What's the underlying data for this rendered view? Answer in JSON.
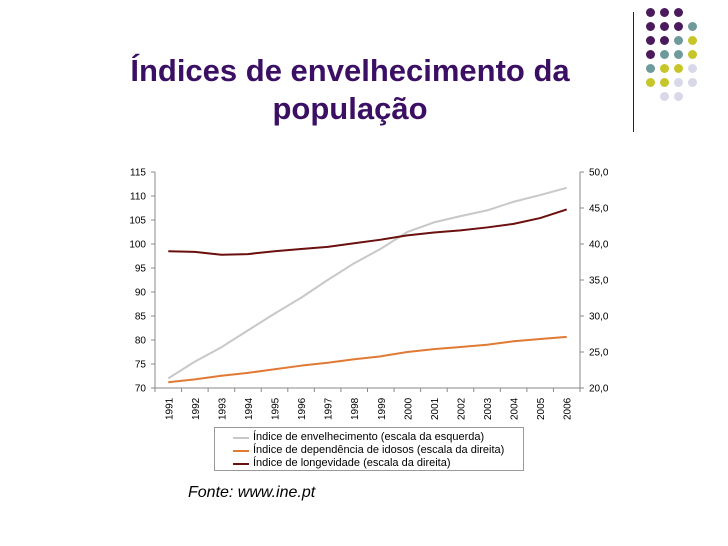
{
  "slide": {
    "title": "Índices de envelhecimento da população",
    "source": "Fonte: www.ine.pt"
  },
  "colors": {
    "title": "#3b0f63",
    "aging": "#c8c8c8",
    "dependency": "#e07a35",
    "longevity": "#6b0f0f",
    "dot_purple": "#4b1a5c",
    "dot_teal": "#6f9a9c",
    "dot_lime": "#c6c52a",
    "dot_lavender": "#d8d8e8"
  },
  "decoration": {
    "dots": [
      [
        "dot_purple",
        "dot_purple",
        "dot_purple",
        null
      ],
      [
        "dot_purple",
        "dot_purple",
        "dot_purple",
        "dot_teal"
      ],
      [
        "dot_purple",
        "dot_purple",
        "dot_teal",
        "dot_lime"
      ],
      [
        "dot_purple",
        "dot_teal",
        "dot_teal",
        "dot_lime"
      ],
      [
        "dot_teal",
        "dot_lime",
        "dot_lime",
        "dot_lavender"
      ],
      [
        "dot_lime",
        "dot_lime",
        "dot_lavender",
        "dot_lavender"
      ],
      [
        null,
        "dot_lavender",
        "dot_lavender",
        null
      ]
    ]
  },
  "chart_data": {
    "type": "line",
    "categories": [
      "1991",
      "1992",
      "1993",
      "1994",
      "1995",
      "1996",
      "1997",
      "1998",
      "1999",
      "2000",
      "2001",
      "2002",
      "2003",
      "2004",
      "2005",
      "2006"
    ],
    "y_left": {
      "range": [
        70,
        115
      ],
      "ticks": [
        "70",
        "75",
        "80",
        "85",
        "90",
        "95",
        "100",
        "105",
        "110",
        "115"
      ]
    },
    "y_right": {
      "range": [
        20,
        50
      ],
      "ticks": [
        "20,0",
        "25,0",
        "30,0",
        "35,0",
        "40,0",
        "45,0",
        "50,0"
      ]
    },
    "grid": false,
    "legend_position": "bottom",
    "series": [
      {
        "name": "Índice de envelhecimento (escala da esquerda)",
        "axis": "left",
        "color_key": "aging",
        "values": [
          72.0,
          75.5,
          78.5,
          82.0,
          85.5,
          88.8,
          92.5,
          96.0,
          99.0,
          102.5,
          104.5,
          105.8,
          107.0,
          108.8,
          110.2,
          111.7
        ]
      },
      {
        "name": "Índice de dependência de idosos (escala da direita)",
        "axis": "right",
        "color_key": "dependency",
        "values": [
          20.8,
          21.2,
          21.7,
          22.1,
          22.6,
          23.1,
          23.5,
          24.0,
          24.4,
          25.0,
          25.4,
          25.7,
          26.0,
          26.5,
          26.8,
          27.1
        ]
      },
      {
        "name": "Índice de longevidade (escala da direita)",
        "axis": "right",
        "color_key": "longevity",
        "values": [
          39.0,
          38.9,
          38.5,
          38.6,
          39.0,
          39.3,
          39.6,
          40.1,
          40.6,
          41.2,
          41.6,
          41.9,
          42.3,
          42.8,
          43.6,
          44.8
        ]
      }
    ]
  }
}
